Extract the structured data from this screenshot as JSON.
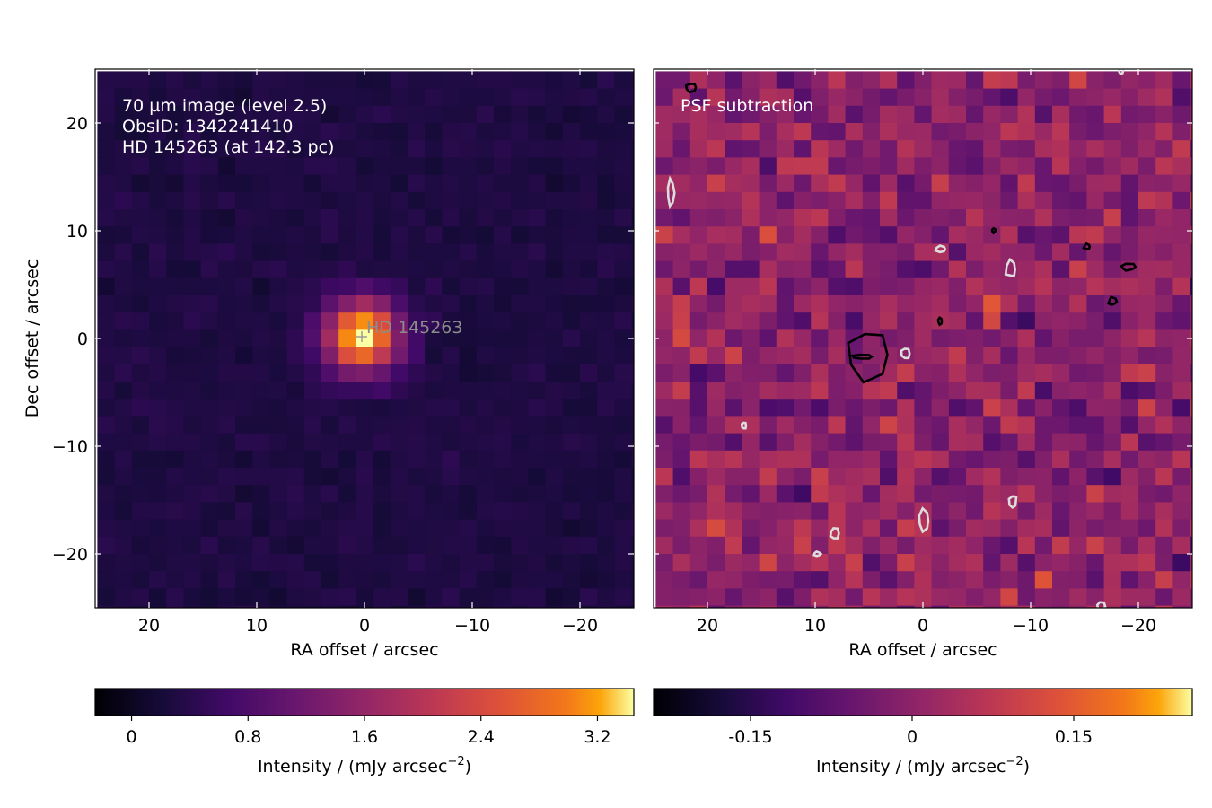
{
  "chart_data": [
    {
      "type": "heatmap",
      "panel": "left",
      "colormap": "inferno",
      "annotation_lines": [
        "70 µm image (level 2.5)",
        "ObsID: 1342241410",
        "HD 145263 (at 142.3 pc)"
      ],
      "source_marker": {
        "label": "HD 145263",
        "ra": 0.2,
        "dec": 0.2,
        "symbol": "+"
      },
      "xlabel": "RA offset / arcsec",
      "ylabel": "Dec offset / arcsec",
      "xlim": [
        25,
        -25
      ],
      "ylim": [
        -25,
        25
      ],
      "xticks": [
        20,
        10,
        0,
        -10,
        -20
      ],
      "xtick_labels": [
        "20",
        "10",
        "0",
        "−10",
        "−20"
      ],
      "yticks": [
        20,
        10,
        0,
        -10,
        -20
      ],
      "ytick_labels": [
        "20",
        "10",
        "0",
        "−10",
        "−20"
      ],
      "grid": false,
      "pixel_size_arcsec": 1.6,
      "grid_size": 31,
      "source_peak": 3.3,
      "source_fwhm_arcsec": 5.5,
      "background_level": 0.3,
      "colorbar": {
        "label": "Intensity / (mJy arcsec−2)",
        "range": [
          -0.25,
          3.45
        ],
        "ticks": [
          0,
          0.8,
          1.6,
          2.4,
          3.2
        ],
        "tick_labels": [
          "0",
          "0.8",
          "1.6",
          "2.4",
          "3.2"
        ]
      }
    },
    {
      "type": "heatmap",
      "panel": "right",
      "colormap": "inferno",
      "annotation_lines": [
        "PSF subtraction"
      ],
      "xlabel": "RA offset / arcsec",
      "xlim": [
        25,
        -25
      ],
      "ylim": [
        -25,
        25
      ],
      "xticks": [
        20,
        10,
        0,
        -10,
        -20
      ],
      "xtick_labels": [
        "20",
        "10",
        "0",
        "−10",
        "−20"
      ],
      "yticks": [
        20,
        10,
        0,
        -10,
        -20
      ],
      "grid": false,
      "pixel_size_arcsec": 1.6,
      "grid_size": 31,
      "residual_noise_sigma": 0.075,
      "contours": {
        "positive_color": "#000000",
        "negative_color": "#dddddd",
        "regions_positive": [
          [
            5.0,
            -1.5,
            2.0,
            2.3
          ],
          [
            21.5,
            23.3,
            0.5,
            0.4
          ],
          [
            -15.2,
            8.5,
            0.4,
            0.3
          ],
          [
            -19.0,
            6.6,
            0.9,
            0.4
          ],
          [
            -17.6,
            3.4,
            0.5,
            0.4
          ],
          [
            -6.6,
            10.0,
            0.2,
            0.2
          ],
          [
            -1.6,
            1.6,
            0.2,
            0.3
          ],
          [
            5.6,
            -1.7,
            0.9,
            0.2
          ]
        ],
        "regions_negative": [
          [
            23.4,
            13.5,
            0.3,
            1.2
          ],
          [
            -1.7,
            8.3,
            0.5,
            0.3
          ],
          [
            -8.2,
            6.4,
            0.5,
            0.9
          ],
          [
            1.6,
            -1.4,
            0.4,
            0.5
          ],
          [
            -8.4,
            -15.2,
            0.4,
            0.6
          ],
          [
            -0.1,
            -16.9,
            0.5,
            1.0
          ],
          [
            8.2,
            -18.1,
            0.4,
            0.5
          ],
          [
            9.8,
            -20.0,
            0.3,
            0.2
          ],
          [
            16.6,
            -8.1,
            0.2,
            0.3
          ],
          [
            -18.4,
            24.8,
            0.3,
            0.3
          ],
          [
            -16.5,
            -24.9,
            0.5,
            0.5
          ]
        ]
      },
      "colorbar": {
        "label": "Intensity / (mJy arcsec−2)",
        "range": [
          -0.24,
          0.26
        ],
        "ticks": [
          -0.15,
          0,
          0.15
        ],
        "tick_labels": [
          "-0.15",
          "0",
          "0.15"
        ]
      }
    }
  ],
  "axis_text": {
    "left_xlabel": "RA offset / arcsec",
    "left_ylabel": "Dec offset / arcsec",
    "right_xlabel": "RA offset / arcsec",
    "cbar_label_prefix": "Intensity / (mJy arcsec",
    "cbar_label_exponent": "−2",
    "cbar_label_suffix": ")",
    "left_annot_1": "70 µm image (level 2.5)",
    "left_annot_2": "ObsID: 1342241410",
    "left_annot_3": "HD 145263 (at 142.3 pc)",
    "source_label": "HD 145263",
    "right_annot": "PSF subtraction"
  }
}
